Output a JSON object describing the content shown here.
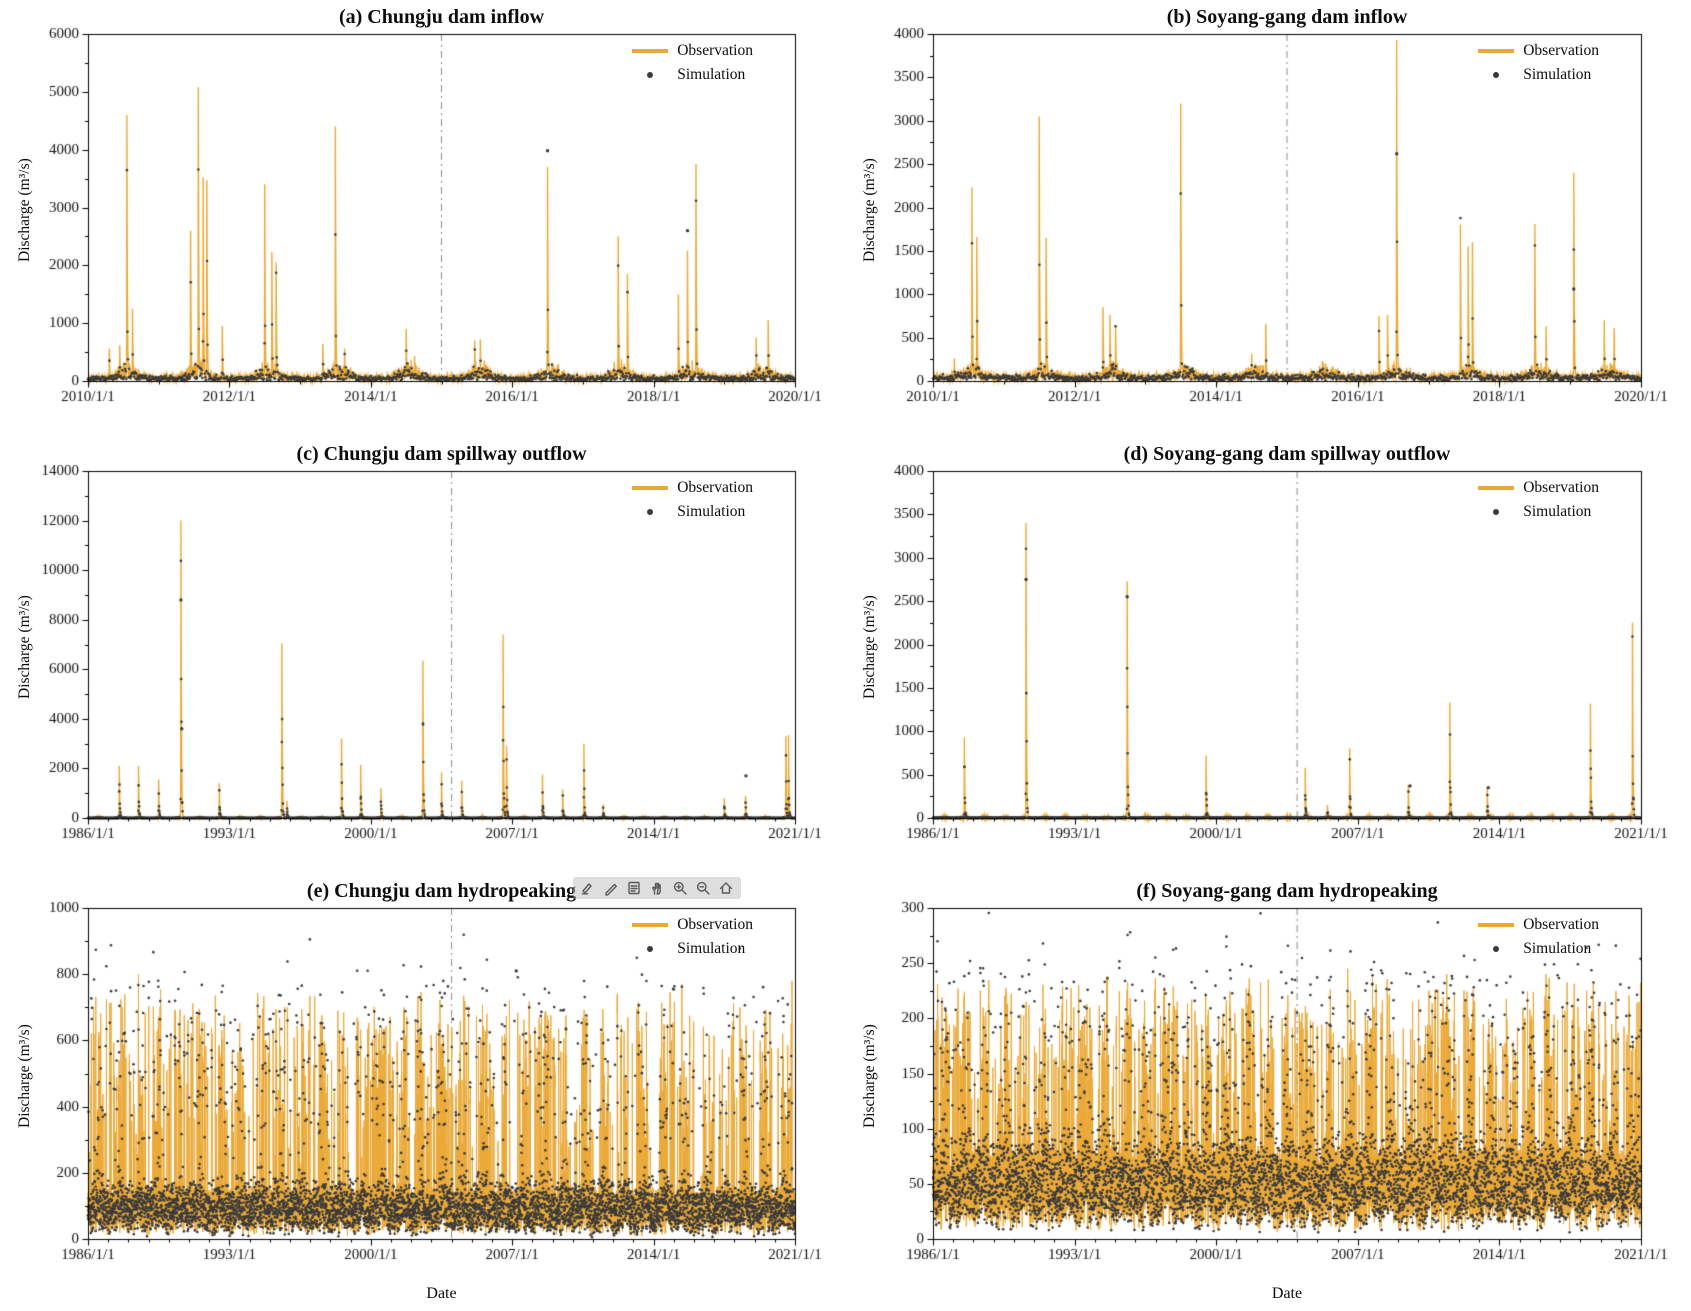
{
  "figure": {
    "legend": {
      "observation": "Observation",
      "simulation": "Simulation"
    },
    "colors": {
      "observation": "#EBA937",
      "simulation": "#3b3b3b",
      "split_line": "#8a8a8a",
      "axis": "#000000",
      "background": "#ffffff"
    },
    "toolbar_icons": [
      "annotate-icon",
      "pen-icon",
      "form-icon",
      "pan-hand-icon",
      "zoom-in-icon",
      "zoom-out-icon",
      "home-icon"
    ]
  },
  "chart_data": [
    {
      "id": "a",
      "type": "line",
      "title": "(a) Chungju dam inflow",
      "ylabel": "Discharge (m³/s)",
      "xlabel": "",
      "ylim": [
        0,
        6000
      ],
      "yticks": [
        0,
        1000,
        2000,
        3000,
        4000,
        5000,
        6000
      ],
      "x_start_year": 2010,
      "x_end_year": 2020,
      "xtick_years": [
        2010,
        2012,
        2014,
        2016,
        2018,
        2020
      ],
      "xtick_labels": [
        "2010/1/1",
        "2012/1/1",
        "2014/1/1",
        "2016/1/1",
        "2018/1/1",
        "2020/1/1"
      ],
      "split_x": 2015.0,
      "grid": false,
      "legend_position": "top-right",
      "series": [
        {
          "name": "Observation",
          "style": "line",
          "color": "#EBA937"
        },
        {
          "name": "Simulation",
          "style": "scatter",
          "color": "#3b3b3b"
        }
      ],
      "obs_peaks": [
        [
          2010.3,
          560
        ],
        [
          2010.45,
          620
        ],
        [
          2010.55,
          4600
        ],
        [
          2010.63,
          1250
        ],
        [
          2011.45,
          2600
        ],
        [
          2011.56,
          5080
        ],
        [
          2011.63,
          3520
        ],
        [
          2011.68,
          3470
        ],
        [
          2011.9,
          950
        ],
        [
          2012.5,
          3400
        ],
        [
          2012.6,
          2230
        ],
        [
          2012.66,
          2050
        ],
        [
          2013.32,
          640
        ],
        [
          2013.5,
          4400
        ],
        [
          2013.63,
          560
        ],
        [
          2014.5,
          900
        ],
        [
          2014.62,
          430
        ],
        [
          2015.47,
          700
        ],
        [
          2015.55,
          720
        ],
        [
          2016.5,
          3700
        ],
        [
          2017.5,
          2500
        ],
        [
          2017.63,
          1850
        ],
        [
          2018.35,
          1500
        ],
        [
          2018.48,
          2250
        ],
        [
          2018.6,
          3750
        ],
        [
          2019.45,
          750
        ],
        [
          2019.62,
          1050
        ]
      ],
      "sim_extra_points": [
        [
          2016.5,
          3980
        ],
        [
          2018.48,
          2600
        ]
      ],
      "gen": {
        "kind": "spiky",
        "seed": 101,
        "base_mean": 55,
        "base_noise": 50,
        "seasonal_amp": 350,
        "spike_decay": 2.4,
        "sim_step": 3
      }
    },
    {
      "id": "b",
      "type": "line",
      "title": "(b) Soyang-gang dam inflow",
      "ylabel": "Discharge (m³/s)",
      "xlabel": "",
      "ylim": [
        0,
        4000
      ],
      "yticks": [
        0,
        500,
        1000,
        1500,
        2000,
        2500,
        3000,
        3500,
        4000
      ],
      "x_start_year": 2010,
      "x_end_year": 2020,
      "xtick_years": [
        2010,
        2012,
        2014,
        2016,
        2018,
        2020
      ],
      "xtick_labels": [
        "2010/1/1",
        "2012/1/1",
        "2014/1/1",
        "2016/1/1",
        "2018/1/1",
        "2020/1/1"
      ],
      "split_x": 2015.0,
      "grid": false,
      "legend_position": "top-right",
      "series": [
        {
          "name": "Observation",
          "style": "line",
          "color": "#EBA937"
        },
        {
          "name": "Simulation",
          "style": "scatter",
          "color": "#3b3b3b"
        }
      ],
      "obs_peaks": [
        [
          2010.3,
          260
        ],
        [
          2010.55,
          2230
        ],
        [
          2010.62,
          1660
        ],
        [
          2011.5,
          3050
        ],
        [
          2011.6,
          1650
        ],
        [
          2012.4,
          850
        ],
        [
          2012.5,
          760
        ],
        [
          2012.58,
          640
        ],
        [
          2013.5,
          3200
        ],
        [
          2014.5,
          310
        ],
        [
          2014.7,
          660
        ],
        [
          2015.5,
          230
        ],
        [
          2016.3,
          750
        ],
        [
          2016.42,
          760
        ],
        [
          2016.55,
          3930
        ],
        [
          2017.45,
          1800
        ],
        [
          2017.56,
          1550
        ],
        [
          2017.62,
          1600
        ],
        [
          2018.5,
          1810
        ],
        [
          2018.66,
          630
        ],
        [
          2019.05,
          2400
        ],
        [
          2019.48,
          700
        ],
        [
          2019.62,
          610
        ]
      ],
      "sim_extra_points": [
        [
          2016.55,
          2620
        ],
        [
          2019.05,
          1060
        ]
      ],
      "gen": {
        "kind": "spiky",
        "seed": 202,
        "base_mean": 45,
        "base_noise": 40,
        "seasonal_amp": 200,
        "spike_decay": 2.4,
        "sim_step": 3
      }
    },
    {
      "id": "c",
      "type": "line",
      "title": "(c) Chungju dam spillway outflow",
      "ylabel": "Discharge (m³/s)",
      "xlabel": "",
      "ylim": [
        0,
        14000
      ],
      "yticks": [
        0,
        2000,
        4000,
        6000,
        8000,
        10000,
        12000,
        14000
      ],
      "x_start_year": 1986,
      "x_end_year": 2021,
      "xtick_years": [
        1986,
        1993,
        2000,
        2007,
        2014,
        2021
      ],
      "xtick_labels": [
        "1986/1/1",
        "1993/1/1",
        "2000/1/1",
        "2007/1/1",
        "2014/1/1",
        "2021/1/1"
      ],
      "split_x": 2004.0,
      "grid": false,
      "legend_position": "top-right",
      "series": [
        {
          "name": "Observation",
          "style": "line",
          "color": "#EBA937"
        },
        {
          "name": "Simulation",
          "style": "scatter",
          "color": "#3b3b3b"
        }
      ],
      "obs_peaks": [
        [
          1987.55,
          2100
        ],
        [
          1988.5,
          2100
        ],
        [
          1989.5,
          1550
        ],
        [
          1990.6,
          12000
        ],
        [
          1992.5,
          1400
        ],
        [
          1995.6,
          7050
        ],
        [
          1995.85,
          700
        ],
        [
          1998.55,
          3200
        ],
        [
          1999.5,
          2150
        ],
        [
          2000.5,
          1200
        ],
        [
          2002.58,
          6350
        ],
        [
          2003.5,
          1850
        ],
        [
          2004.5,
          1500
        ],
        [
          2006.55,
          7400
        ],
        [
          2006.72,
          2900
        ],
        [
          2008.5,
          1750
        ],
        [
          2009.5,
          1150
        ],
        [
          2010.55,
          3000
        ],
        [
          2011.5,
          550
        ],
        [
          2017.5,
          800
        ],
        [
          2018.55,
          900
        ],
        [
          2020.55,
          3300
        ],
        [
          2020.68,
          3350
        ]
      ],
      "sim_extra_points": [
        [
          1990.6,
          8800
        ],
        [
          1990.64,
          3600
        ],
        [
          2018.57,
          1700
        ]
      ],
      "gen": {
        "kind": "spiky",
        "seed": 303,
        "base_mean": 1.5,
        "base_noise": 2,
        "seasonal_amp": 20,
        "spike_decay": 8.5,
        "sim_step": 5
      }
    },
    {
      "id": "d",
      "type": "line",
      "title": "(d) Soyang-gang dam spillway outflow",
      "ylabel": "Discharge (m³/s)",
      "xlabel": "",
      "ylim": [
        0,
        4000
      ],
      "yticks": [
        0,
        500,
        1000,
        1500,
        2000,
        2500,
        3000,
        3500,
        4000
      ],
      "x_start_year": 1986,
      "x_end_year": 2021,
      "xtick_years": [
        1986,
        1993,
        2000,
        2007,
        2014,
        2021
      ],
      "xtick_labels": [
        "1986/1/1",
        "1993/1/1",
        "2000/1/1",
        "2007/1/1",
        "2014/1/1",
        "2021/1/1"
      ],
      "split_x": 2004.0,
      "grid": false,
      "legend_position": "top-right",
      "series": [
        {
          "name": "Observation",
          "style": "line",
          "color": "#EBA937"
        },
        {
          "name": "Simulation",
          "style": "scatter",
          "color": "#3b3b3b"
        }
      ],
      "obs_peaks": [
        [
          1987.55,
          930
        ],
        [
          1990.6,
          3400
        ],
        [
          1995.6,
          2730
        ],
        [
          1999.5,
          720
        ],
        [
          2004.4,
          580
        ],
        [
          2005.5,
          150
        ],
        [
          2006.6,
          800
        ],
        [
          2009.5,
          380
        ],
        [
          2011.55,
          1330
        ],
        [
          2013.4,
          360
        ],
        [
          2018.5,
          1320
        ],
        [
          2020.58,
          2250
        ]
      ],
      "sim_extra_points": [
        [
          1990.6,
          2750
        ],
        [
          1995.6,
          2550
        ],
        [
          2009.58,
          370
        ],
        [
          2013.45,
          350
        ]
      ],
      "gen": {
        "kind": "spiky",
        "seed": 404,
        "base_mean": 1.2,
        "base_noise": 1.5,
        "seasonal_amp": 10,
        "spike_decay": 8.5,
        "sim_step": 5
      }
    },
    {
      "id": "e",
      "type": "line",
      "title": "(e) Chungju dam hydropeaking",
      "ylabel": "Discharge (m³/s)",
      "xlabel": "Date",
      "ylim": [
        0,
        1000
      ],
      "yticks": [
        0,
        200,
        400,
        600,
        800,
        1000
      ],
      "x_start_year": 1986,
      "x_end_year": 2021,
      "xtick_years": [
        1986,
        1993,
        2000,
        2007,
        2014,
        2021
      ],
      "xtick_labels": [
        "1986/1/1",
        "1993/1/1",
        "2000/1/1",
        "2007/1/1",
        "2014/1/1",
        "2021/1/1"
      ],
      "split_x": 2004.0,
      "grid": false,
      "legend_position": "top-right",
      "series": [
        {
          "name": "Observation",
          "style": "line",
          "color": "#EBA937"
        },
        {
          "name": "Simulation",
          "style": "scatter",
          "color": "#3b3b3b"
        }
      ],
      "obs_peaks": [
        [
          1986.3,
          620
        ],
        [
          1988.5,
          800
        ],
        [
          2004.6,
          735
        ],
        [
          2015.4,
          770
        ],
        [
          2020.85,
          780
        ]
      ],
      "sim_extra_points": [
        [
          2007.2,
          810
        ]
      ],
      "gen": {
        "kind": "dense",
        "seed": 505,
        "base_mean": 95,
        "base_noise": 55,
        "seasonal_amp": 110,
        "spike_prob": 0.1,
        "spike_min": 250,
        "spike_max": 770,
        "sim_spike_prob": 0.05,
        "spike_decay": 3,
        "sim_step": 2
      }
    },
    {
      "id": "f",
      "type": "line",
      "title": "(f) Soyang-gang dam hydropeaking",
      "ylabel": "Discharge (m³/s)",
      "xlabel": "Date",
      "ylim": [
        0,
        300
      ],
      "yticks": [
        0,
        50,
        100,
        150,
        200,
        250,
        300
      ],
      "x_start_year": 1986,
      "x_end_year": 2021,
      "xtick_years": [
        1986,
        1993,
        2000,
        2007,
        2014,
        2021
      ],
      "xtick_labels": [
        "1986/1/1",
        "1993/1/1",
        "2000/1/1",
        "2007/1/1",
        "2014/1/1",
        "2021/1/1"
      ],
      "split_x": 2004.0,
      "grid": false,
      "legend_position": "top-right",
      "series": [
        {
          "name": "Observation",
          "style": "line",
          "color": "#EBA937"
        },
        {
          "name": "Simulation",
          "style": "scatter",
          "color": "#3b3b3b"
        }
      ],
      "obs_peaks": [
        [
          1993.2,
          230
        ],
        [
          2006.5,
          245
        ],
        [
          2011.4,
          240
        ],
        [
          2020.9,
          215
        ]
      ],
      "sim_extra_points": [],
      "gen": {
        "kind": "dense",
        "seed": 606,
        "base_mean": 52,
        "base_noise": 26,
        "seasonal_amp": 55,
        "spike_prob": 0.12,
        "spike_min": 80,
        "spike_max": 242,
        "sim_spike_prob": 0.06,
        "spike_decay": 3,
        "sim_step": 2
      }
    }
  ]
}
